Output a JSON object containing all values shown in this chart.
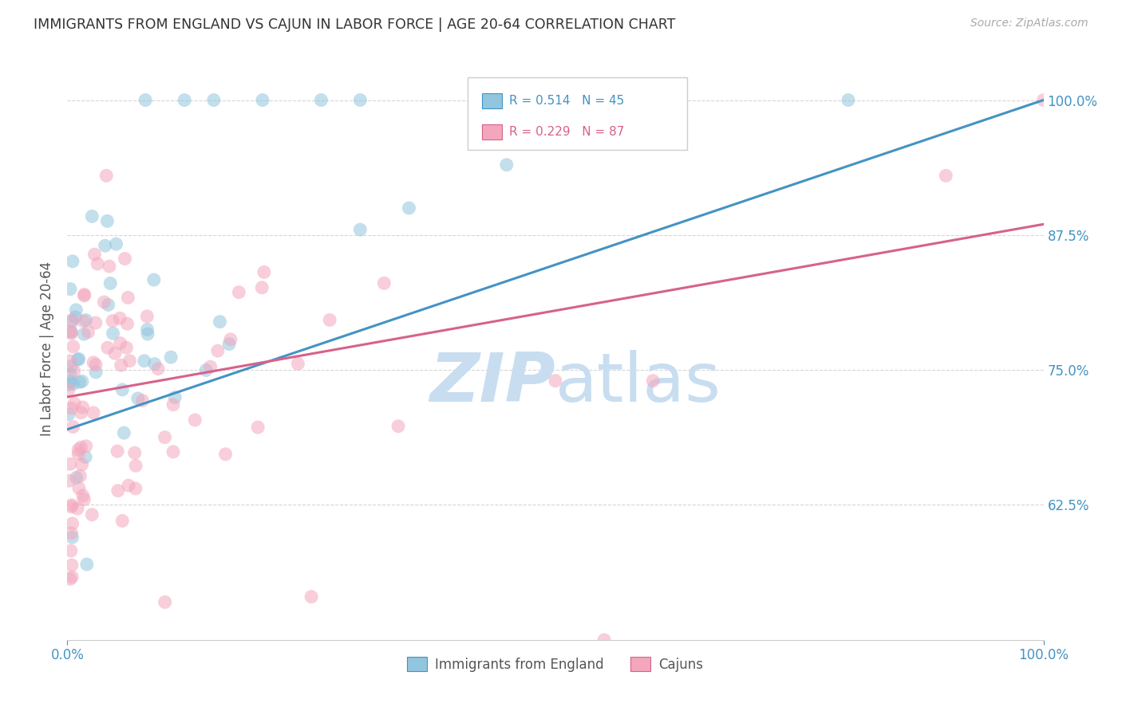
{
  "title": "IMMIGRANTS FROM ENGLAND VS CAJUN IN LABOR FORCE | AGE 20-64 CORRELATION CHART",
  "source": "Source: ZipAtlas.com",
  "ylabel": "In Labor Force | Age 20-64",
  "ytick_labels": [
    "62.5%",
    "75.0%",
    "87.5%",
    "100.0%"
  ],
  "ytick_values": [
    0.625,
    0.75,
    0.875,
    1.0
  ],
  "xtick_labels": [
    "0.0%",
    "100.0%"
  ],
  "xtick_values": [
    0.0,
    1.0
  ],
  "legend_blue_label": "Immigrants from England",
  "legend_pink_label": "Cajuns",
  "legend_blue_r": "R = 0.514",
  "legend_blue_n": "N = 45",
  "legend_pink_r": "R = 0.229",
  "legend_pink_n": "N = 87",
  "blue_color": "#92c5de",
  "pink_color": "#f4a6bd",
  "blue_line_color": "#4393c3",
  "pink_line_color": "#d6628a",
  "blue_r_text_color": "#4393c3",
  "pink_r_text_color": "#d6628a",
  "n_text_color": "#4393c3",
  "watermark_zip_color": "#c8ddf0",
  "watermark_atlas_color": "#c8ddf0",
  "background_color": "#ffffff",
  "grid_color": "#cccccc",
  "axis_tick_color": "#4393c3",
  "title_color": "#333333",
  "ylabel_color": "#555555",
  "source_color": "#aaaaaa",
  "xlim": [
    0.0,
    1.0
  ],
  "ylim": [
    0.5,
    1.04
  ],
  "blue_line_x0": 0.0,
  "blue_line_y0": 0.695,
  "blue_line_x1": 1.0,
  "blue_line_y1": 1.0,
  "pink_line_x0": 0.0,
  "pink_line_y0": 0.725,
  "pink_line_x1": 1.0,
  "pink_line_y1": 0.885
}
